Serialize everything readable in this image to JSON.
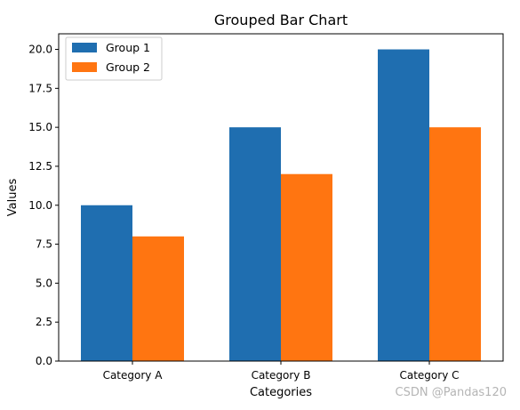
{
  "chart_data": {
    "type": "bar",
    "title": "Grouped Bar Chart",
    "xlabel": "Categories",
    "ylabel": "Values",
    "categories": [
      "Category A",
      "Category B",
      "Category C"
    ],
    "series": [
      {
        "name": "Group 1",
        "values": [
          10,
          15,
          20
        ],
        "color": "#1f6eb0"
      },
      {
        "name": "Group 2",
        "values": [
          8,
          12,
          15
        ],
        "color": "#ff7511"
      }
    ],
    "ylim": [
      0,
      21
    ],
    "yticks": [
      "0.0",
      "2.5",
      "5.0",
      "7.5",
      "10.0",
      "12.5",
      "15.0",
      "17.5",
      "20.0"
    ],
    "grid": false,
    "legend_position": "top-left"
  },
  "watermark": "CSDN @Pandas120"
}
